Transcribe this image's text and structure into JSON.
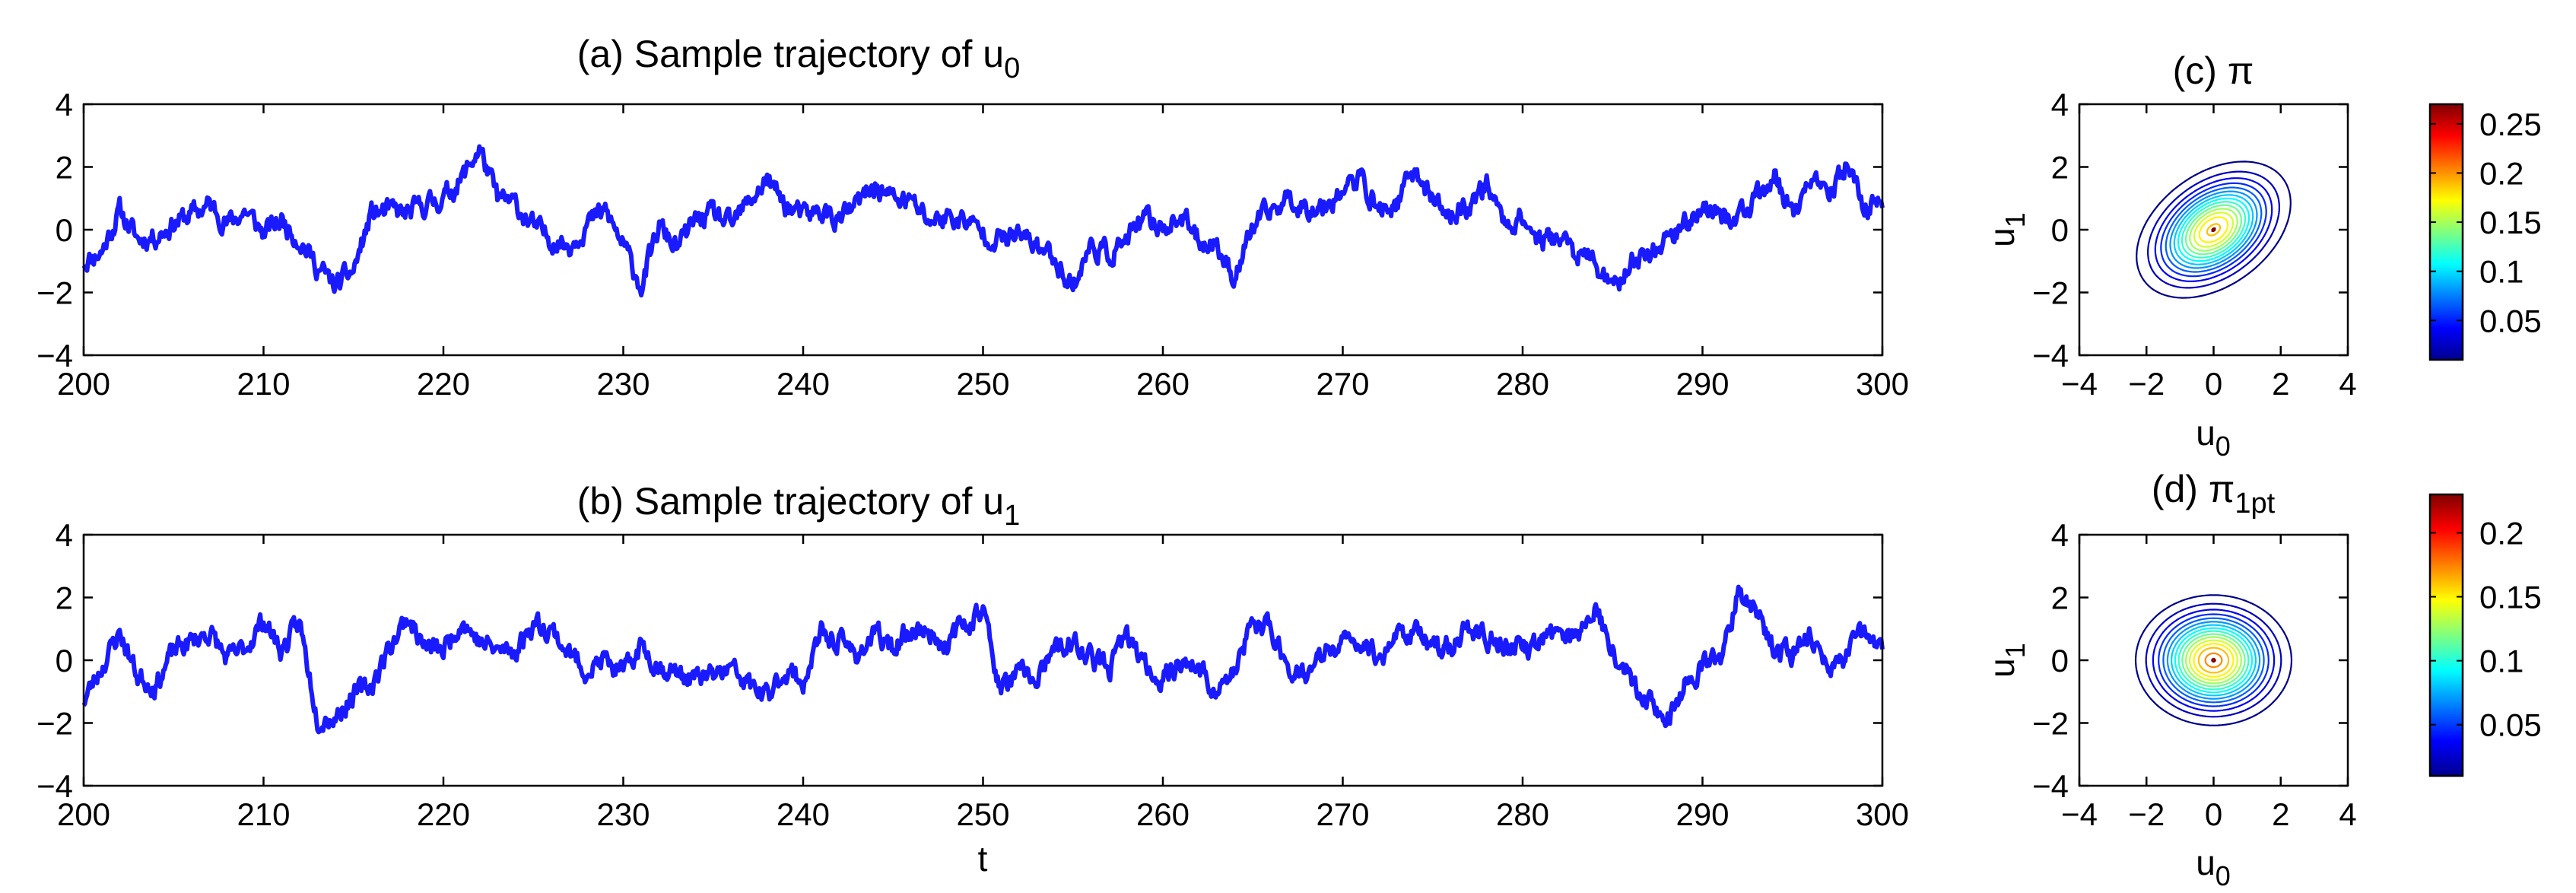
{
  "chart_data": [
    {
      "id": "a",
      "type": "line",
      "title": "(a)  Sample trajectory of u",
      "title_sub": "0",
      "xlabel": "",
      "ylabel": "",
      "xlim": [
        200,
        300
      ],
      "ylim": [
        -4,
        4
      ],
      "xticks": [
        200,
        210,
        220,
        230,
        240,
        250,
        260,
        270,
        280,
        290,
        300
      ],
      "yticks": [
        -4,
        -2,
        0,
        2,
        4
      ],
      "line_color": "#1a1aff",
      "anchors": {
        "x": [
          200,
          201,
          202,
          203,
          204,
          205,
          206,
          207,
          208,
          209,
          210,
          211,
          212,
          213,
          214,
          215,
          216,
          217,
          218,
          219,
          220,
          221,
          222,
          223,
          224,
          225,
          226,
          227,
          228,
          229,
          230,
          231,
          232,
          233,
          234,
          235,
          236,
          237,
          238,
          239,
          240,
          241,
          242,
          243,
          244,
          245,
          246,
          247,
          248,
          249,
          250,
          251,
          252,
          253,
          254,
          255,
          256,
          257,
          258,
          259,
          260,
          261,
          262,
          263,
          264,
          265,
          266,
          267,
          268,
          269,
          270,
          271,
          272,
          273,
          274,
          275,
          276,
          277,
          278,
          279,
          280,
          281,
          282,
          283,
          284,
          285,
          286,
          287,
          288,
          289,
          290,
          291,
          292,
          293,
          294,
          295,
          296,
          297,
          298,
          299,
          300
        ],
        "y": [
          -1.0,
          -0.7,
          0.6,
          -0.3,
          -0.2,
          0.2,
          0.5,
          0.8,
          0.2,
          0.6,
          -0.1,
          0.3,
          -0.3,
          -1.2,
          -1.8,
          -1.3,
          0.5,
          0.6,
          0.5,
          0.8,
          1.0,
          1.6,
          2.6,
          1.0,
          0.8,
          0.1,
          -0.3,
          -0.5,
          0.2,
          0.6,
          -0.5,
          -1.8,
          0.1,
          -0.6,
          0.3,
          0.5,
          0.1,
          0.9,
          1.6,
          0.8,
          0.4,
          0.6,
          0.3,
          0.8,
          1.4,
          1.0,
          0.9,
          0.3,
          0.4,
          0.3,
          -0.1,
          -0.3,
          -0.2,
          -0.5,
          -0.9,
          -1.8,
          -0.5,
          -0.8,
          -0.3,
          0.3,
          0.1,
          0.4,
          -0.3,
          -0.5,
          -1.5,
          0.1,
          0.6,
          1.0,
          0.7,
          0.8,
          1.3,
          1.6,
          0.6,
          0.8,
          1.9,
          1.0,
          0.4,
          0.8,
          1.5,
          0.2,
          0.4,
          -0.4,
          -0.2,
          -0.8,
          -1.0,
          -2.0,
          -1.0,
          -0.8,
          -0.2,
          0.1,
          0.8,
          0.4,
          0.4,
          0.9,
          1.7,
          0.5,
          1.5,
          1.0,
          2.1,
          0.7,
          1.0
        ]
      },
      "n_points": 1600,
      "noise_seed": 11
    },
    {
      "id": "b",
      "type": "line",
      "title": "(b)  Sample trajectory of u",
      "title_sub": "1",
      "xlabel": "t",
      "ylabel": "",
      "xlim": [
        200,
        300
      ],
      "ylim": [
        -4,
        4
      ],
      "xticks": [
        200,
        210,
        220,
        230,
        240,
        250,
        260,
        270,
        280,
        290,
        300
      ],
      "yticks": [
        -4,
        -2,
        0,
        2,
        4
      ],
      "line_color": "#1a1aff",
      "anchors": {
        "x": [
          200,
          201,
          202,
          203,
          204,
          205,
          206,
          207,
          208,
          209,
          210,
          211,
          212,
          213,
          214,
          215,
          216,
          217,
          218,
          219,
          220,
          221,
          222,
          223,
          224,
          225,
          226,
          227,
          228,
          229,
          230,
          231,
          232,
          233,
          234,
          235,
          236,
          237,
          238,
          239,
          240,
          241,
          242,
          243,
          244,
          245,
          246,
          247,
          248,
          249,
          250,
          251,
          252,
          253,
          254,
          255,
          256,
          257,
          258,
          259,
          260,
          261,
          262,
          263,
          264,
          265,
          266,
          267,
          268,
          269,
          270,
          271,
          272,
          273,
          274,
          275,
          276,
          277,
          278,
          279,
          280,
          281,
          282,
          283,
          284,
          285,
          286,
          287,
          288,
          289,
          290,
          291,
          292,
          293,
          294,
          295,
          296,
          297,
          298,
          299,
          300
        ],
        "y": [
          -1.3,
          -0.2,
          0.9,
          -0.5,
          -0.8,
          0.3,
          0.6,
          0.9,
          0.0,
          0.4,
          1.3,
          0.3,
          1.2,
          -1.8,
          -1.8,
          -1.1,
          -0.8,
          0.4,
          1.4,
          0.4,
          0.3,
          1.3,
          0.6,
          0.3,
          0.3,
          1.2,
          1.0,
          0.2,
          -0.3,
          0.0,
          -0.5,
          0.5,
          -0.2,
          -0.4,
          -0.6,
          -0.5,
          -0.3,
          -0.8,
          -1.2,
          -0.3,
          -0.7,
          0.8,
          0.6,
          0.2,
          0.8,
          0.4,
          1.0,
          0.9,
          0.5,
          1.2,
          1.6,
          -1.0,
          -0.4,
          -0.6,
          0.3,
          0.5,
          0.1,
          -0.3,
          0.8,
          -0.2,
          -0.6,
          0.0,
          -0.3,
          -1.0,
          -0.4,
          1.2,
          1.0,
          -0.2,
          -0.5,
          0.2,
          0.5,
          0.6,
          0.1,
          0.8,
          1.0,
          0.3,
          0.5,
          1.0,
          0.7,
          0.5,
          0.3,
          0.6,
          0.9,
          0.7,
          1.8,
          0.4,
          -0.6,
          -1.2,
          -2.0,
          -0.8,
          -0.2,
          0.0,
          2.3,
          1.5,
          0.4,
          0.2,
          0.9,
          -0.3,
          0.1,
          0.9,
          0.3
        ]
      },
      "n_points": 1600,
      "noise_seed": 23
    },
    {
      "id": "c",
      "type": "contour",
      "title": "(c)  π",
      "title_sub": "",
      "xlabel": "u",
      "xlabel_sub": "0",
      "ylabel": "u",
      "ylabel_sub": "1",
      "xlim": [
        -4,
        4
      ],
      "ylim": [
        -4,
        4
      ],
      "xticks": [
        -4,
        -2,
        0,
        2,
        4
      ],
      "yticks": [
        -4,
        -2,
        0,
        2,
        4
      ],
      "covariance": [
        [
          0.95,
          0.35
        ],
        [
          0.35,
          0.85
        ]
      ],
      "center": [
        0,
        0
      ],
      "levels": 20,
      "level_max": 0.27,
      "level_min": 0.012,
      "colorbar": {
        "min": 0.01,
        "max": 0.27,
        "ticks": [
          0.05,
          0.1,
          0.15,
          0.2,
          0.25
        ]
      }
    },
    {
      "id": "d",
      "type": "contour",
      "title": "(d)  π",
      "title_sub": "1pt",
      "xlabel": "u",
      "xlabel_sub": "0",
      "ylabel": "u",
      "ylabel_sub": "1",
      "xlim": [
        -4,
        4
      ],
      "ylim": [
        -4,
        4
      ],
      "xticks": [
        -4,
        -2,
        0,
        2,
        4
      ],
      "yticks": [
        -4,
        -2,
        0,
        2,
        4
      ],
      "covariance": [
        [
          1.0,
          0.0
        ],
        [
          0.0,
          0.8
        ]
      ],
      "center": [
        0,
        0
      ],
      "levels": 20,
      "level_max": 0.23,
      "level_min": 0.012,
      "colorbar": {
        "min": 0.01,
        "max": 0.23,
        "ticks": [
          0.05,
          0.1,
          0.15,
          0.2
        ]
      }
    }
  ]
}
